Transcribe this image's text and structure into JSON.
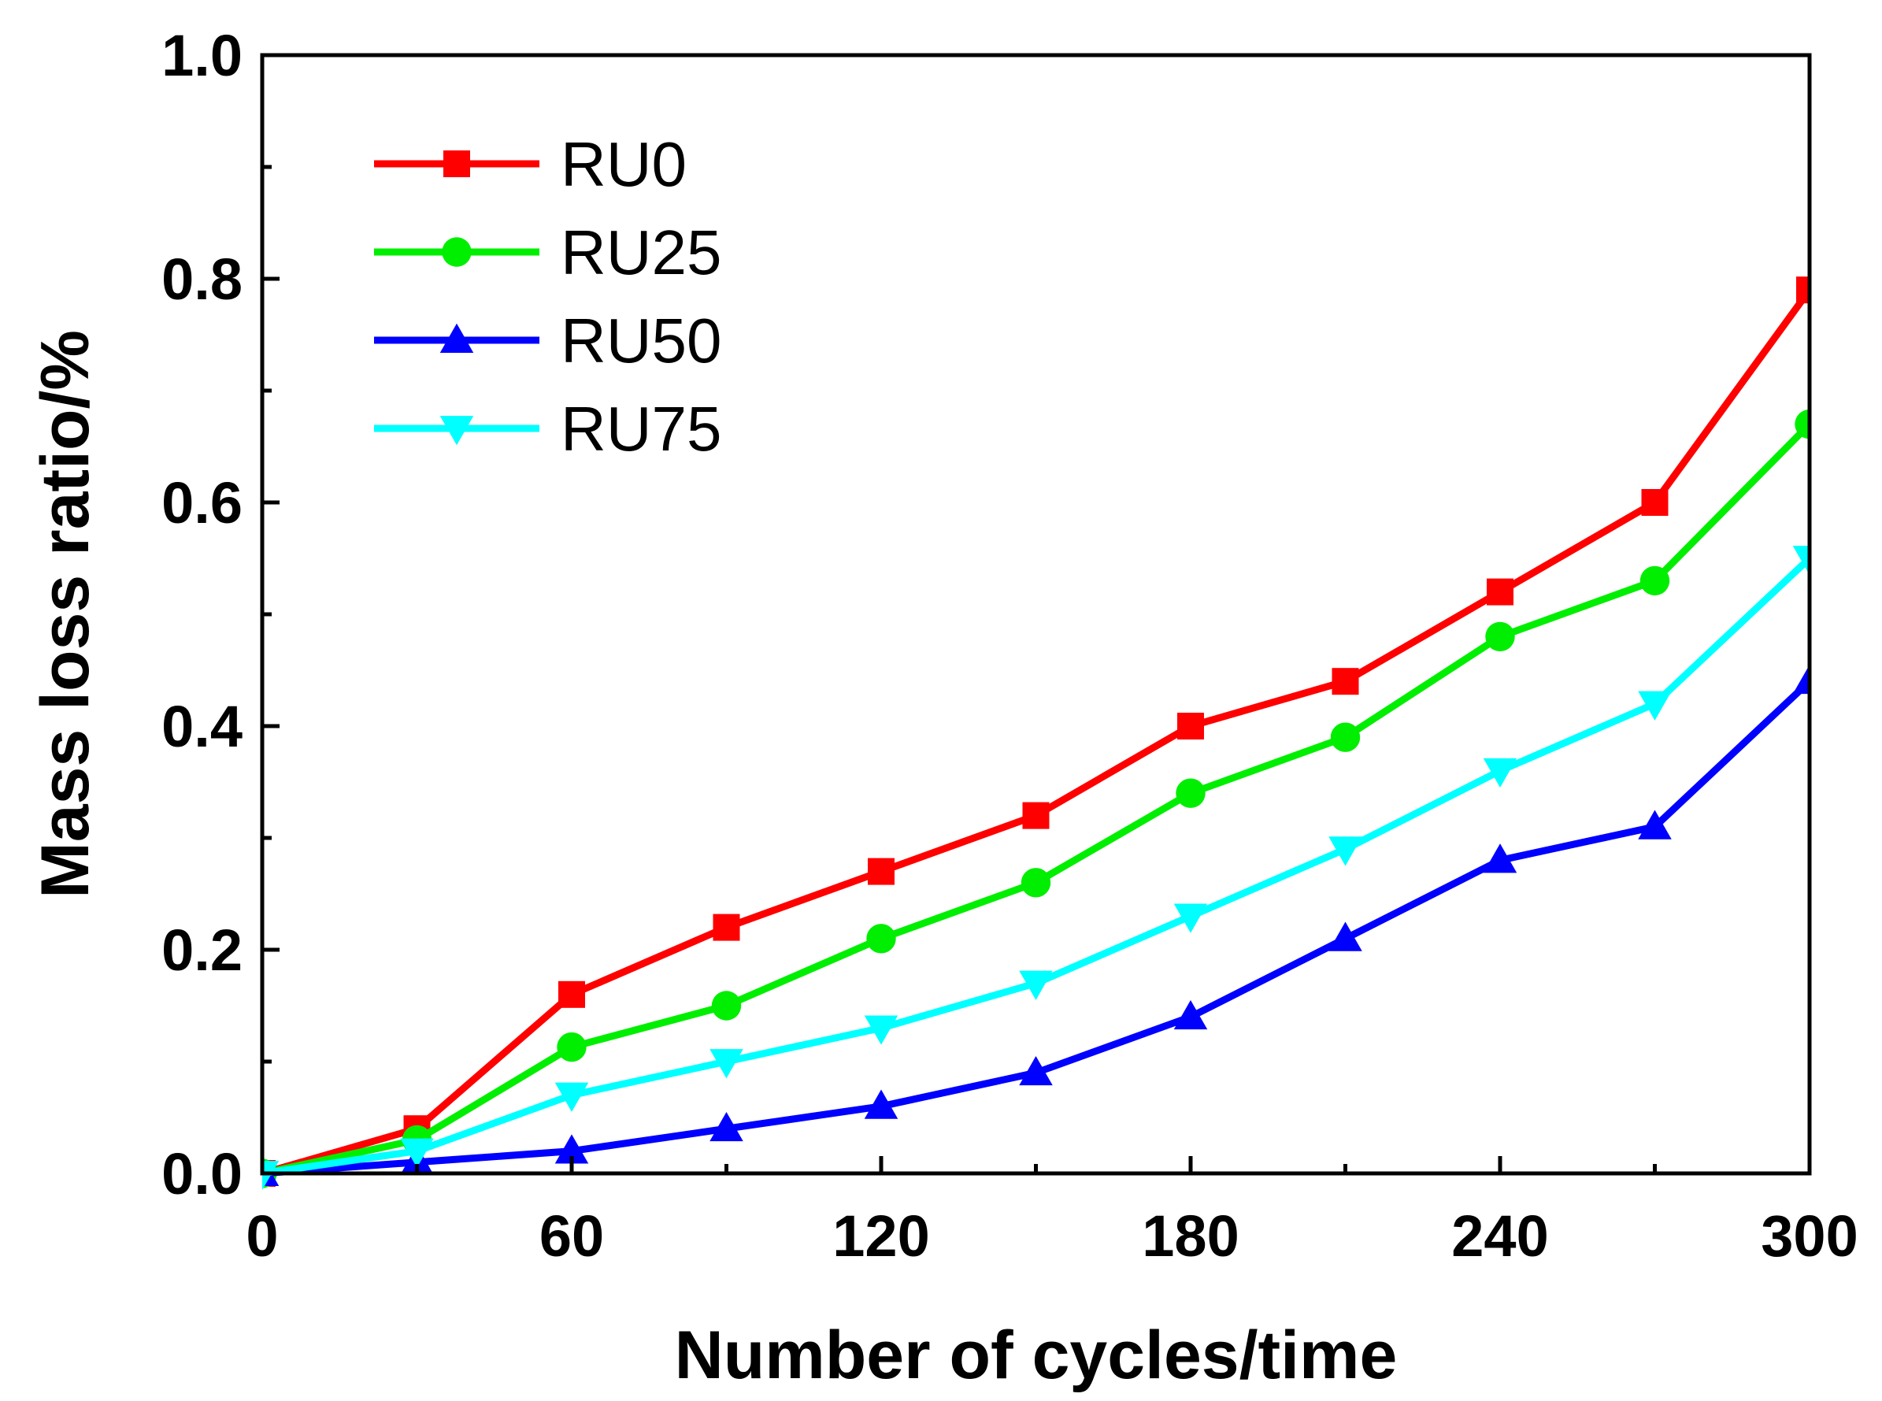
{
  "chart_data": {
    "type": "line",
    "title": "",
    "xlabel": "Number of cycles/time",
    "ylabel": "Mass loss ratio/%",
    "xlim": [
      0,
      300
    ],
    "ylim": [
      0,
      1.0
    ],
    "x": [
      0,
      30,
      60,
      90,
      120,
      150,
      180,
      210,
      240,
      270,
      300
    ],
    "x_major_ticks": [
      0,
      60,
      120,
      180,
      240,
      300
    ],
    "x_tick_labels": [
      "0",
      "60",
      "120",
      "180",
      "240",
      "300"
    ],
    "x_minor_ticks": [
      30,
      90,
      150,
      210,
      270
    ],
    "y_major_ticks": [
      0,
      0.2,
      0.4,
      0.6,
      0.8,
      1.0
    ],
    "y_tick_labels": [
      "0.0",
      "0.2",
      "0.4",
      "0.6",
      "0.8",
      "1.0"
    ],
    "y_minor_ticks": [
      0.1,
      0.3,
      0.5,
      0.7,
      0.9
    ],
    "grid": false,
    "legend_position": "top-left",
    "series": [
      {
        "name": "RU0",
        "color": "#ff0000",
        "marker": "square",
        "values": [
          0.0,
          0.04,
          0.16,
          0.22,
          0.27,
          0.32,
          0.4,
          0.44,
          0.52,
          0.6,
          0.79
        ]
      },
      {
        "name": "RU25",
        "color": "#00ee00",
        "marker": "circle",
        "values": [
          0.0,
          0.03,
          0.113,
          0.15,
          0.21,
          0.26,
          0.34,
          0.39,
          0.48,
          0.53,
          0.67
        ]
      },
      {
        "name": "RU50",
        "color": "#0000ff",
        "marker": "triangle-up",
        "values": [
          0.0,
          0.01,
          0.02,
          0.04,
          0.06,
          0.09,
          0.14,
          0.21,
          0.28,
          0.31,
          0.44
        ]
      },
      {
        "name": "RU75",
        "color": "#00ffff",
        "marker": "triangle-down",
        "values": [
          0.0,
          0.02,
          0.07,
          0.1,
          0.13,
          0.17,
          0.23,
          0.29,
          0.36,
          0.42,
          0.55
        ]
      }
    ]
  }
}
